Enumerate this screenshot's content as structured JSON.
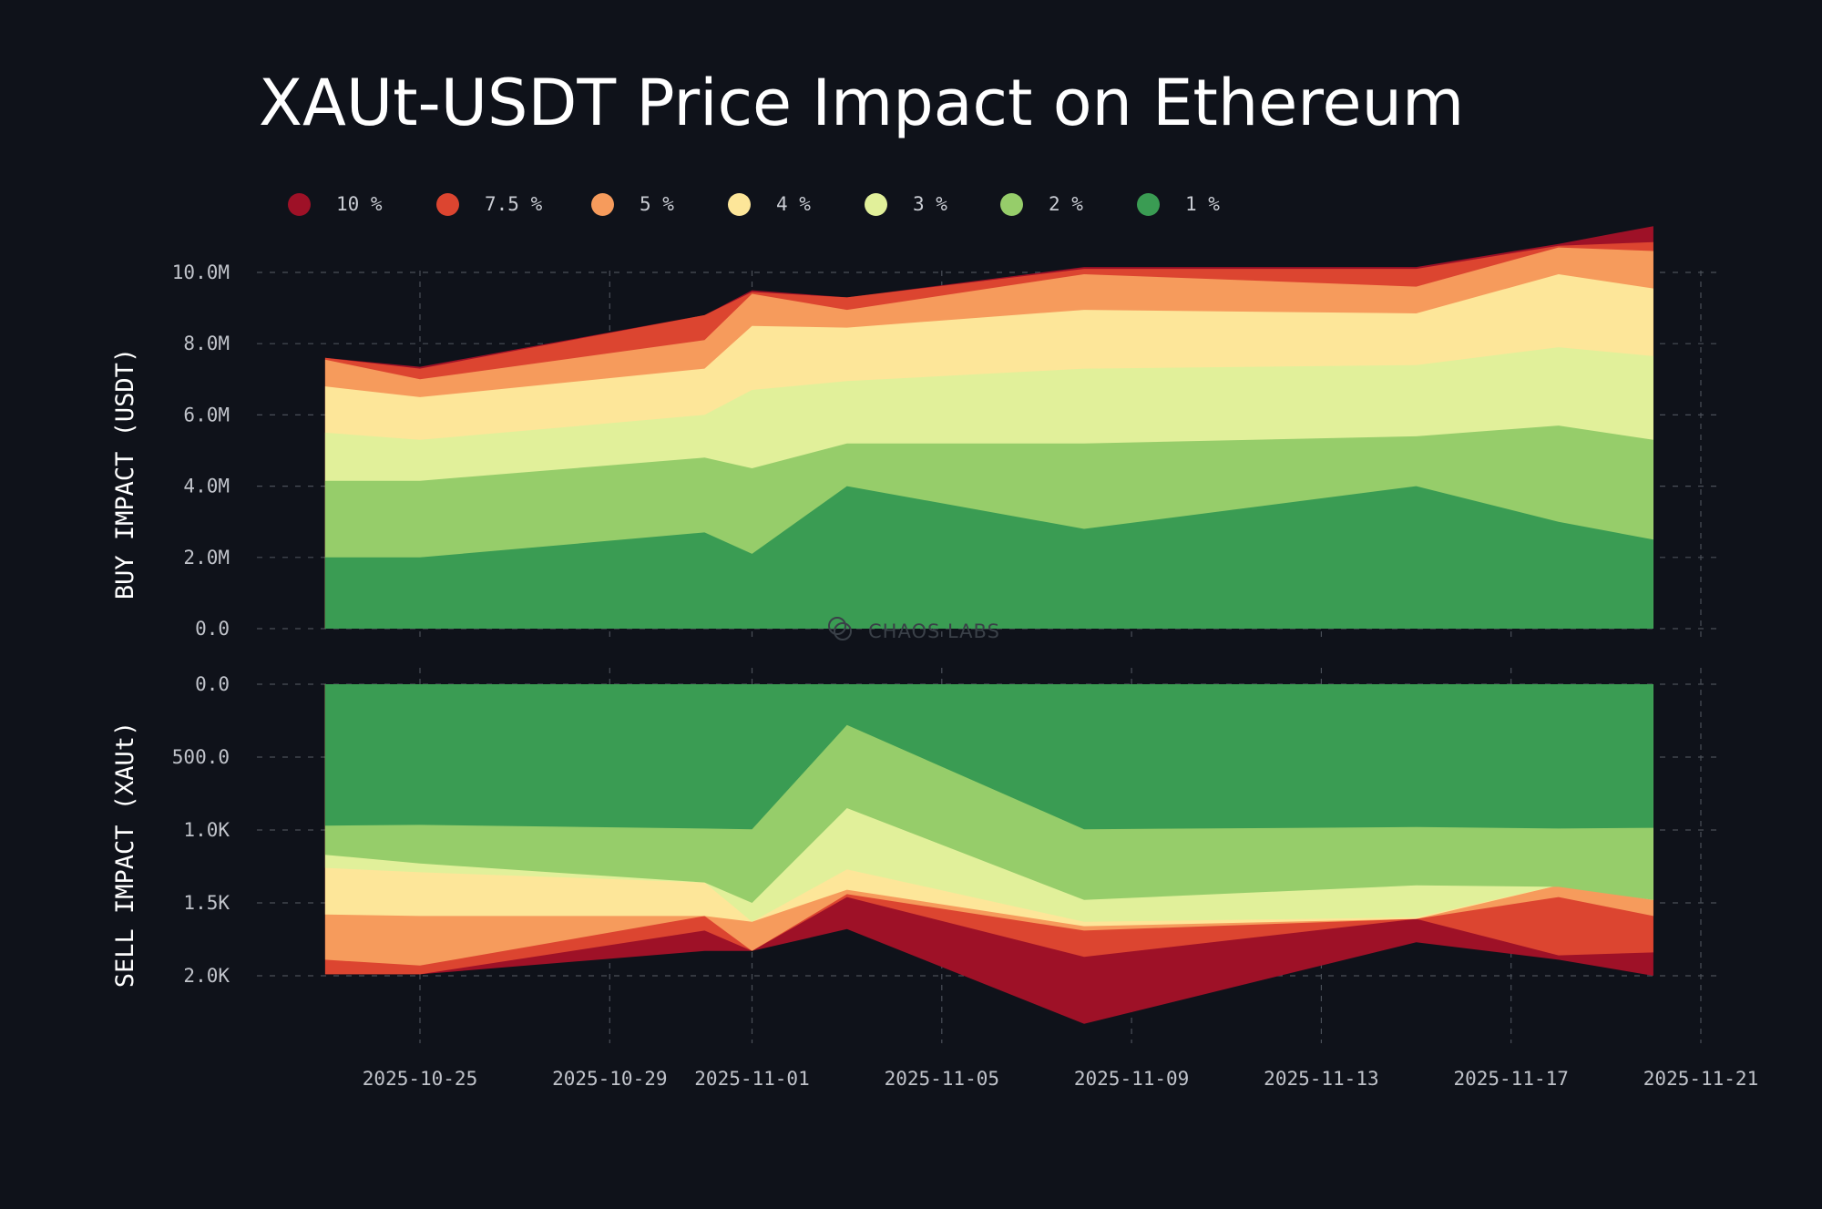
{
  "title": "XAUt-USDT Price Impact on Ethereum",
  "watermark": "CHAOS LABS",
  "colors": {
    "background": "#0f121a",
    "grid": "#4a4f58",
    "series": [
      "#9e1127",
      "#dc4530",
      "#f69b5c",
      "#fde699",
      "#e1f09a",
      "#96cd6a",
      "#3a9c53"
    ]
  },
  "legend": [
    "10 %",
    "7.5 %",
    "5 %",
    "4 %",
    "3 %",
    "2 %",
    "1 %"
  ],
  "chart_data": [
    {
      "type": "area",
      "name": "buy",
      "ylabel": "BUY IMPACT (USDT)",
      "ylim": [
        0,
        11500000
      ],
      "yticks": [
        0,
        2000000,
        4000000,
        6000000,
        8000000,
        10000000
      ],
      "ytick_labels": [
        "0.0",
        "2.0M",
        "4.0M",
        "6.0M",
        "8.0M",
        "10.0M"
      ],
      "xlim": [
        "2025-10-22",
        "2025-11-22"
      ],
      "xticks": [
        "2025-10-25",
        "2025-10-29",
        "2025-11-01",
        "2025-11-05",
        "2025-11-09",
        "2025-11-13",
        "2025-11-17",
        "2025-11-21"
      ],
      "x": [
        "2025-10-23",
        "2025-10-25",
        "2025-10-31",
        "2025-11-01",
        "2025-11-03",
        "2025-11-08",
        "2025-11-15",
        "2025-11-18",
        "2025-11-20"
      ],
      "series": [
        {
          "name": "1 %",
          "values": [
            2000000,
            2000000,
            2700000,
            2100000,
            4000000,
            2800000,
            4000000,
            3000000,
            2500000
          ]
        },
        {
          "name": "2 %",
          "values": [
            4150000,
            4150000,
            4800000,
            4500000,
            5200000,
            5200000,
            5400000,
            5700000,
            5300000
          ]
        },
        {
          "name": "3 %",
          "values": [
            5500000,
            5300000,
            6000000,
            6700000,
            6950000,
            7300000,
            7400000,
            7900000,
            7650000
          ]
        },
        {
          "name": "4 %",
          "values": [
            6800000,
            6500000,
            7300000,
            8500000,
            8450000,
            8950000,
            8850000,
            9950000,
            9550000
          ]
        },
        {
          "name": "5 %",
          "values": [
            7550000,
            7000000,
            8100000,
            9400000,
            8950000,
            9950000,
            9600000,
            10700000,
            10600000
          ]
        },
        {
          "name": "7.5 %",
          "values": [
            7600000,
            7300000,
            8800000,
            9450000,
            9300000,
            10100000,
            10100000,
            10750000,
            10850000
          ]
        },
        {
          "name": "10 %",
          "values": [
            7600000,
            7350000,
            8800000,
            9500000,
            9300000,
            10150000,
            10150000,
            10800000,
            11300000
          ]
        }
      ]
    },
    {
      "type": "area",
      "name": "sell",
      "ylabel": "SELL IMPACT (XAUt)",
      "ylim": [
        0,
        2400
      ],
      "inverted": true,
      "yticks": [
        0,
        500,
        1000,
        1500,
        2000
      ],
      "ytick_labels": [
        "0.0",
        "500.0",
        "1.0K",
        "1.5K",
        "2.0K"
      ],
      "xlim": [
        "2025-10-22",
        "2025-11-22"
      ],
      "x": [
        "2025-10-23",
        "2025-10-25",
        "2025-10-31",
        "2025-11-01",
        "2025-11-03",
        "2025-11-08",
        "2025-11-15",
        "2025-11-18",
        "2025-11-20"
      ],
      "series": [
        {
          "name": "1 %",
          "values": [
            970,
            965,
            990,
            995,
            280,
            995,
            980,
            990,
            985
          ]
        },
        {
          "name": "2 %",
          "values": [
            1170,
            1230,
            1360,
            1500,
            850,
            1480,
            1380,
            1390,
            1480
          ]
        },
        {
          "name": "3 %",
          "values": [
            1260,
            1290,
            1360,
            1630,
            1270,
            1630,
            1600,
            1380,
            1480
          ]
        },
        {
          "name": "4 %",
          "values": [
            1580,
            1590,
            1590,
            1630,
            1410,
            1660,
            1610,
            1380,
            1480
          ]
        },
        {
          "name": "5 %",
          "values": [
            1890,
            1930,
            1590,
            1830,
            1440,
            1690,
            1610,
            1460,
            1590
          ]
        },
        {
          "name": "7.5 %",
          "values": [
            1990,
            1990,
            1690,
            1830,
            1460,
            1870,
            1610,
            1860,
            1840
          ]
        },
        {
          "name": "10 %",
          "values": [
            1990,
            1990,
            1830,
            1830,
            1680,
            2330,
            1770,
            1890,
            2000
          ]
        }
      ]
    }
  ]
}
